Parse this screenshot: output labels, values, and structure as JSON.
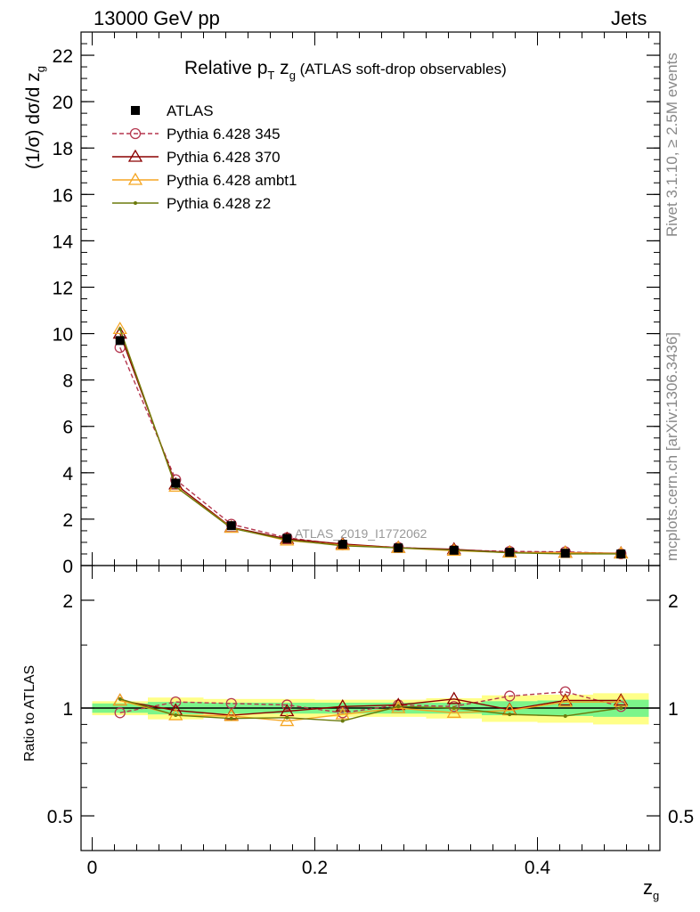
{
  "header": {
    "left": "13000 GeV pp",
    "right": "Jets"
  },
  "side_labels": {
    "version": "Rivet 3.1.10, ≥ 2.5M events",
    "site": "mcplots.cern.ch [arXiv:1306.3436]"
  },
  "chart_data": [
    {
      "type": "line",
      "title_main": "Relative p",
      "title_sub1": "T",
      "title_mid": " z",
      "title_sub2": "g",
      "title_rest": " (ATLAS soft-drop observables)",
      "ylabel": "(1/σ) dσ/d z",
      "ylabel_sub": "g",
      "watermark": "ATLAS_2019_I1772062",
      "ylim": [
        0,
        23
      ],
      "yticks": [
        0,
        2,
        4,
        6,
        8,
        10,
        12,
        14,
        16,
        18,
        20,
        22
      ],
      "x": [
        0.025,
        0.075,
        0.125,
        0.175,
        0.225,
        0.275,
        0.325,
        0.375,
        0.425,
        0.475
      ],
      "series": [
        {
          "name": "ATLAS",
          "color": "#000000",
          "marker": "square",
          "values": [
            9.7,
            3.55,
            1.72,
            1.17,
            0.92,
            0.76,
            0.66,
            0.57,
            0.53,
            0.5
          ]
        },
        {
          "name": "Pythia 6.428 345",
          "color": "#b5374f",
          "marker": "circle",
          "dashed": true,
          "values": [
            9.4,
            3.7,
            1.78,
            1.2,
            0.9,
            0.78,
            0.67,
            0.61,
            0.59,
            0.51
          ]
        },
        {
          "name": "Pythia 6.428 370",
          "color": "#8b0000",
          "marker": "triangle",
          "values": [
            10.0,
            3.5,
            1.65,
            1.15,
            0.93,
            0.77,
            0.7,
            0.57,
            0.56,
            0.53
          ]
        },
        {
          "name": "Pythia 6.428 ambt1",
          "color": "#f5a623",
          "marker": "triangle",
          "values": [
            10.2,
            3.4,
            1.63,
            1.08,
            0.88,
            0.76,
            0.64,
            0.56,
            0.55,
            0.52
          ]
        },
        {
          "name": "Pythia 6.428 z2",
          "color": "#6b7a0b",
          "marker": "dot",
          "values": [
            10.2,
            3.4,
            1.61,
            1.11,
            0.85,
            0.76,
            0.67,
            0.55,
            0.5,
            0.5
          ]
        }
      ]
    },
    {
      "type": "line",
      "ylabel": "Ratio to ATLAS",
      "xlabel": "z",
      "xlabel_sub": "g",
      "xlim": [
        -0.01,
        0.51
      ],
      "xticks": [
        0,
        0.2,
        0.4
      ],
      "xtick_labels": [
        "0",
        "0.2",
        "0.4"
      ],
      "ylim": [
        0.4,
        2.5
      ],
      "log_y": true,
      "yticks": [
        0.5,
        1,
        2
      ],
      "ytick_labels": [
        "0.5",
        "1",
        "2"
      ],
      "band_inner": [
        0.03,
        0.04,
        0.035,
        0.035,
        0.035,
        0.035,
        0.035,
        0.045,
        0.05,
        0.055
      ],
      "band_outer": [
        0.045,
        0.07,
        0.06,
        0.06,
        0.055,
        0.055,
        0.065,
        0.085,
        0.09,
        0.1
      ],
      "series": [
        {
          "name": "Pythia 6.428 345",
          "values": [
            0.97,
            1.04,
            1.03,
            1.02,
            0.97,
            1.02,
            1.01,
            1.08,
            1.11,
            1.01
          ]
        },
        {
          "name": "Pythia 6.428 370",
          "values": [
            1.05,
            0.985,
            0.955,
            0.98,
            1.01,
            1.02,
            1.06,
            0.99,
            1.05,
            1.05
          ]
        },
        {
          "name": "Pythia 6.428 ambt1",
          "values": [
            1.05,
            0.955,
            0.95,
            0.92,
            0.96,
            1.0,
            0.97,
            0.985,
            1.04,
            1.04
          ]
        },
        {
          "name": "Pythia 6.428 z2",
          "values": [
            1.06,
            0.955,
            0.935,
            0.94,
            0.92,
            1.01,
            1.0,
            0.96,
            0.95,
            1.0
          ]
        }
      ]
    }
  ]
}
